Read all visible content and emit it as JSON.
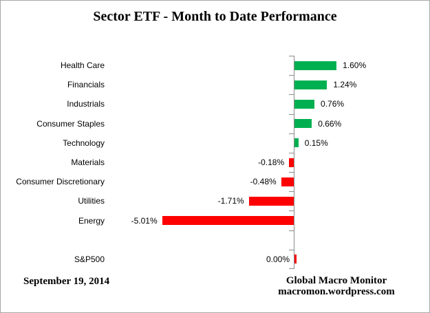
{
  "title": "Sector ETF - Month to Date Performance",
  "footer": {
    "date": "September 19, 2014",
    "attribution_line1": "Global Macro Monitor",
    "attribution_line2": "macromon.wordpress.com"
  },
  "colors": {
    "positive_bar": "#00B050",
    "negative_bar": "#FF0000",
    "axis": "#8A8A8A"
  },
  "chart_data": {
    "type": "bar",
    "orientation": "horizontal",
    "title": "Sector ETF - Month to Date Performance",
    "xlabel": "",
    "ylabel": "",
    "xlim": [
      -5.5,
      2.0
    ],
    "grid": false,
    "legend": false,
    "categories": [
      "Health Care",
      "Financials",
      "Industrials",
      "Consumer Staples",
      "Technology",
      "Materials",
      "Consumer Discretionary",
      "Utilities",
      "Energy",
      "",
      "S&P500"
    ],
    "values": [
      1.6,
      1.24,
      0.76,
      0.66,
      0.15,
      -0.18,
      -0.48,
      -1.71,
      -5.01,
      null,
      0.0
    ],
    "value_labels": [
      "1.60%",
      "1.24%",
      "0.76%",
      "0.66%",
      "0.15%",
      "-0.18%",
      "-0.48%",
      "-1.71%",
      "-5.01%",
      "",
      "0.00%"
    ]
  }
}
